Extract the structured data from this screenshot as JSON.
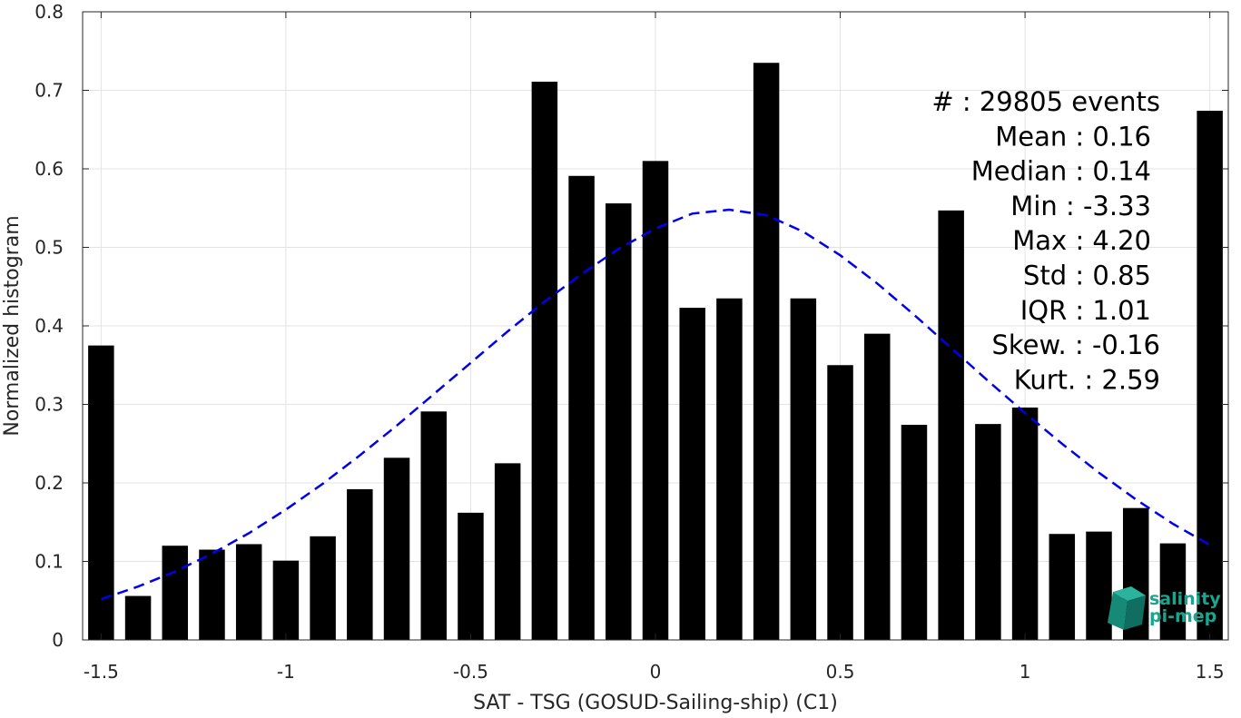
{
  "chart_data": {
    "type": "bar",
    "xlabel": "SAT - TSG (GOSUD-Sailing-ship) (C1)",
    "ylabel": "Normalized histogram",
    "xlim": [
      -1.55,
      1.55
    ],
    "ylim": [
      0,
      0.8
    ],
    "grid": true,
    "xticks": [
      -1.5,
      -1,
      -0.5,
      0,
      0.5,
      1,
      1.5
    ],
    "xtick_labels": [
      "-1.5",
      "-1",
      "-0.5",
      "0",
      "0.5",
      "1",
      "1.5"
    ],
    "yticks": [
      0,
      0.1,
      0.2,
      0.3,
      0.4,
      0.5,
      0.6,
      0.7,
      0.8
    ],
    "ytick_labels": [
      "0",
      "0.1",
      "0.2",
      "0.3",
      "0.4",
      "0.5",
      "0.6",
      "0.7",
      "0.8"
    ],
    "bar_color": "#000000",
    "x": [
      -1.5,
      -1.4,
      -1.3,
      -1.2,
      -1.1,
      -1.0,
      -0.9,
      -0.8,
      -0.7,
      -0.6,
      -0.5,
      -0.4,
      -0.3,
      -0.2,
      -0.1,
      0.0,
      0.1,
      0.2,
      0.3,
      0.4,
      0.5,
      0.6,
      0.7,
      0.8,
      0.9,
      1.0,
      1.1,
      1.2,
      1.3,
      1.4,
      1.5
    ],
    "values": [
      0.375,
      0.056,
      0.12,
      0.115,
      0.122,
      0.101,
      0.132,
      0.192,
      0.232,
      0.291,
      0.162,
      0.225,
      0.711,
      0.591,
      0.556,
      0.61,
      0.423,
      0.435,
      0.735,
      0.435,
      0.35,
      0.39,
      0.274,
      0.547,
      0.275,
      0.296,
      0.135,
      0.138,
      0.168,
      0.123,
      0.674
    ],
    "fit_curve": {
      "style": "dashed",
      "color": "#0000ee",
      "x": [
        -1.5,
        -1.4,
        -1.3,
        -1.2,
        -1.1,
        -1.0,
        -0.9,
        -0.8,
        -0.7,
        -0.6,
        -0.5,
        -0.4,
        -0.3,
        -0.2,
        -0.1,
        0.0,
        0.1,
        0.2,
        0.3,
        0.4,
        0.5,
        0.6,
        0.7,
        0.8,
        0.9,
        1.0,
        1.1,
        1.2,
        1.3,
        1.4,
        1.5
      ],
      "y": [
        0.052,
        0.068,
        0.087,
        0.11,
        0.136,
        0.166,
        0.199,
        0.235,
        0.273,
        0.313,
        0.353,
        0.393,
        0.431,
        0.466,
        0.498,
        0.524,
        0.543,
        0.548,
        0.541,
        0.52,
        0.49,
        0.454,
        0.414,
        0.372,
        0.33,
        0.289,
        0.25,
        0.213,
        0.179,
        0.148,
        0.121
      ]
    },
    "stats": [
      {
        "label": "#  : 29805 events"
      },
      {
        "label": "Mean : 0.16"
      },
      {
        "label": "Median : 0.14"
      },
      {
        "label": "Min : -3.33"
      },
      {
        "label": "Max : 4.20"
      },
      {
        "label": "Std : 0.85"
      },
      {
        "label": "IQR : 1.01"
      },
      {
        "label": "Skew. : -0.16"
      },
      {
        "label": "Kurt. : 2.59"
      }
    ]
  },
  "logo": {
    "line1": "salinity",
    "line2": "pi-mep",
    "color": "#1aa58f"
  }
}
